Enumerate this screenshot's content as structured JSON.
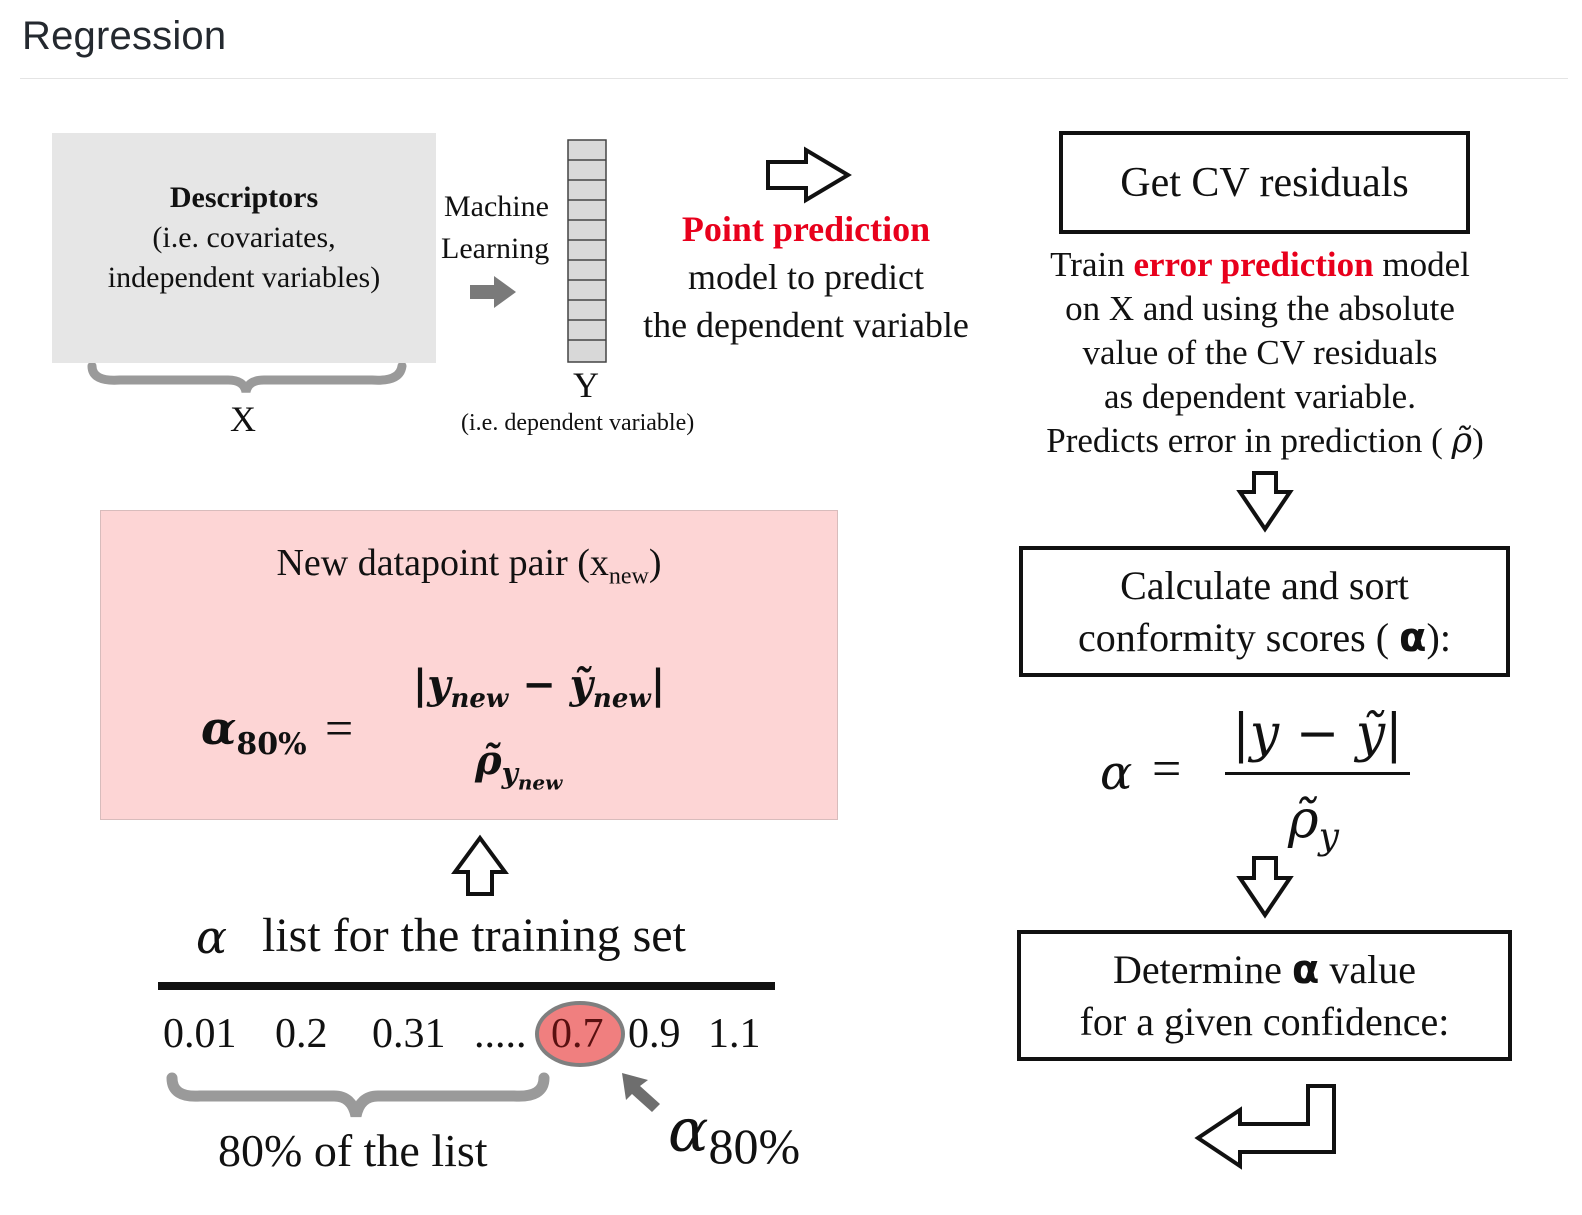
{
  "page": {
    "title": "Regression"
  },
  "descriptors": {
    "title": "Descriptors",
    "line1": "(i.e. covariates,",
    "line2": "independent variables)",
    "brace_label": "X"
  },
  "ml": {
    "line1": "Machine",
    "line2": "Learning"
  },
  "y_column": {
    "label": "Y",
    "sublabel": "(i.e. dependent variable)"
  },
  "point_prediction": {
    "highlight": "Point prediction",
    "line2": "model to predict",
    "line3": "the dependent variable"
  },
  "cv_box": {
    "label": "Get CV residuals"
  },
  "error_model": {
    "prefix": "Train ",
    "highlight": "error prediction",
    "suffix": " model",
    "line2": "on X and using the absolute",
    "line3": "value of the CV residuals",
    "line4": "as dependent variable.",
    "line5": "Predicts error in prediction ( ",
    "symbol": "ρ̃",
    "line5_end": ")"
  },
  "conformity_box": {
    "line1": "Calculate and sort",
    "line2": "conformity scores ( ",
    "symbol": "α",
    "line2_end": "):"
  },
  "alpha_formula": {
    "lhs": "α",
    "eq": "=",
    "numerator": "|y − ỹ|",
    "denominator": "ρ̃",
    "denominator_sub": "y"
  },
  "determine_box": {
    "line1_prefix": "Determine ",
    "symbol": "α",
    "line1_suffix": " value",
    "line2": "for a given confidence:"
  },
  "new_datapoint": {
    "label": "New datapoint pair (x",
    "subscript": "new",
    "label_end": ")",
    "lhs": "α",
    "lhs_sub": "80%",
    "eq": "=",
    "numerator": "|y",
    "num_sub1": "new",
    "num_mid": " − ỹ",
    "num_sub2": "new",
    "num_end": "|",
    "denominator": "ρ̃",
    "den_sub": "y",
    "den_sub2": "new"
  },
  "training_list": {
    "symbol": "α",
    "title": "list for the training set",
    "values": [
      "0.01",
      "0.2",
      "0.31",
      ".....",
      "0.7",
      "0.9",
      "1.1"
    ],
    "highlighted_value": "0.7",
    "brace_label": "80% of the list",
    "pointer_symbol": "α",
    "pointer_sub": "80%"
  },
  "colors": {
    "accent_red": "#e8001c",
    "pink_box": "#fdd5d5",
    "gray_box": "#e6e6e6",
    "highlight_circle": "#f07f7f"
  }
}
